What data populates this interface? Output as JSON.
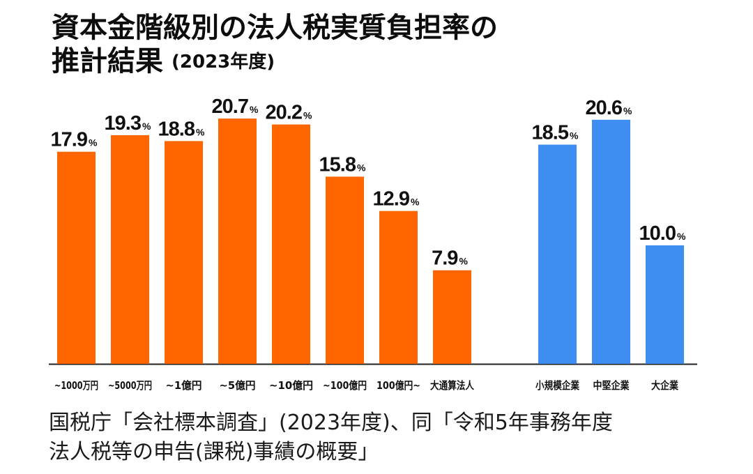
{
  "title": {
    "line1": "資本金階級別の法人税実質負担率の",
    "line2": "推計結果",
    "year": "(2023年度)"
  },
  "source": {
    "line1": "国税庁「会社標本調査」(2023年度)、同「令和5年事務年度",
    "line2": "法人税等の申告(課税)事績の概要」"
  },
  "chart_data": {
    "type": "bar",
    "unit": "%",
    "ylim": [
      0,
      22
    ],
    "grid": false,
    "legend": "none",
    "groups": [
      {
        "color": "#ff6600",
        "categories": [
          "~1000万円",
          "~5000万円",
          "~1億円",
          "~5億円",
          "~10億円",
          "~100億円",
          "100億円~",
          "大通算法人"
        ],
        "values": [
          17.9,
          19.3,
          18.8,
          20.7,
          20.2,
          15.8,
          12.9,
          7.9
        ],
        "labels": [
          "17.9",
          "19.3",
          "18.8",
          "20.7",
          "20.2",
          "15.8",
          "12.9",
          "7.9"
        ]
      },
      {
        "color": "#3d8ef0",
        "categories": [
          "小規模企業",
          "中堅企業",
          "大企業"
        ],
        "values": [
          18.5,
          20.6,
          10.0
        ],
        "labels": [
          "18.5",
          "20.6",
          "10.0"
        ]
      }
    ]
  }
}
